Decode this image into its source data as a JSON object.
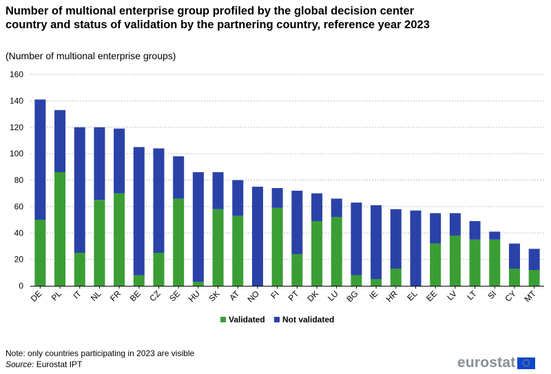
{
  "header": {
    "title": "Number of multional enterprise group profiled by the global decision center country and status of validation by the partnering country, reference year 2023",
    "subtitle": "(Number  of multional  enterprise groups)"
  },
  "footer": {
    "note": "Note: only countries participating in 2023 are visible",
    "source_label": "Source:",
    "source_text": " Eurostat IPT",
    "logo_text": "eurostat"
  },
  "colors": {
    "validated": "#3a9e35",
    "not_validated": "#2a42a8",
    "grid": "#bfbfbf",
    "axis": "#000000"
  },
  "chart_data": {
    "type": "bar",
    "stacked": true,
    "title": "Number of multional enterprise group profiled by the global decision center country and status of validation by the partnering country, reference year 2023",
    "ylabel": "Number of multional enterprise groups",
    "xlabel": "",
    "ylim": [
      0,
      160
    ],
    "yticks": [
      0,
      20,
      40,
      60,
      80,
      100,
      120,
      140,
      160
    ],
    "grid": true,
    "legend_position": "bottom-center",
    "categories": [
      "DE",
      "PL",
      "IT",
      "NL",
      "FR",
      "BE",
      "CZ",
      "SE",
      "HU",
      "SK",
      "AT",
      "NO",
      "FI",
      "PT",
      "DK",
      "LU",
      "BG",
      "IE",
      "HR",
      "EL",
      "EE",
      "LV",
      "LT",
      "SI",
      "CY",
      "MT"
    ],
    "series": [
      {
        "name": "Validated",
        "values": [
          50,
          86,
          25,
          65,
          70,
          8,
          25,
          66,
          3,
          58,
          53,
          0,
          59,
          24,
          49,
          52,
          8,
          5,
          13,
          0,
          32,
          38,
          35,
          35,
          13,
          12
        ]
      },
      {
        "name": "Not validated",
        "values": [
          91,
          47,
          95,
          55,
          49,
          97,
          79,
          32,
          83,
          28,
          27,
          75,
          15,
          48,
          21,
          14,
          55,
          56,
          45,
          57,
          23,
          17,
          14,
          6,
          19,
          16
        ]
      }
    ]
  }
}
